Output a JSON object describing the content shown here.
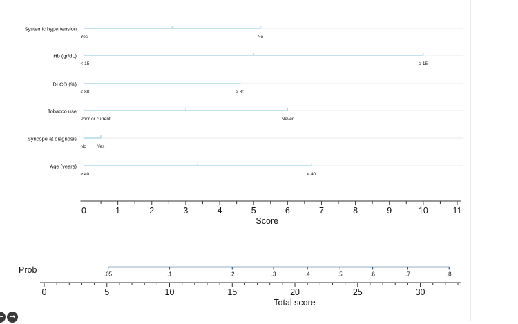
{
  "chart_data": {
    "type": "nomogram",
    "variables": [
      {
        "name": "Systemic hypertension",
        "ticks": [
          {
            "label": "Yes",
            "points": 0
          },
          {
            "label": "No",
            "points": 5.2
          }
        ],
        "max_points": 5.2
      },
      {
        "name": "Hb (gr/dL)",
        "ticks": [
          {
            "label": "< 15",
            "points": 0
          },
          {
            "label": "≥ 15",
            "points": 10
          }
        ],
        "max_points": 10
      },
      {
        "name": "DLCO (%)",
        "ticks": [
          {
            "label": "< 80",
            "points": 0
          },
          {
            "label": "≥ 80",
            "points": 4.6
          }
        ],
        "max_points": 4.6
      },
      {
        "name": "Tobacco use",
        "ticks": [
          {
            "label": "Prior or current",
            "points": 0
          },
          {
            "label": "Never",
            "points": 6
          }
        ],
        "max_points": 6
      },
      {
        "name": "Syncope at diagnosis",
        "ticks": [
          {
            "label": "No",
            "points": 0
          },
          {
            "label": "Yes",
            "points": 0.5
          }
        ],
        "max_points": 0.5
      },
      {
        "name": "Age (years)",
        "ticks": [
          {
            "label": "≥ 40",
            "points": 0
          },
          {
            "label": "< 40",
            "points": 6.7
          }
        ],
        "max_points": 6.7
      }
    ],
    "score_axis": {
      "label": "Score",
      "range": [
        0,
        11
      ],
      "major_ticks": [
        0,
        1,
        2,
        3,
        4,
        5,
        6,
        7,
        8,
        9,
        10,
        11
      ],
      "minor_step": 0.5
    },
    "prob_axis": {
      "label": "Prob",
      "ticks": [
        {
          "label": ".05",
          "total": 5.1
        },
        {
          "label": ".1",
          "total": 10
        },
        {
          "label": ".2",
          "total": 15
        },
        {
          "label": ".3",
          "total": 18.3
        },
        {
          "label": ".4",
          "total": 21
        },
        {
          "label": ".5",
          "total": 23.6
        },
        {
          "label": ".6",
          "total": 26.2
        },
        {
          "label": ".7",
          "total": 29
        },
        {
          "label": ".8",
          "total": 32.3
        }
      ],
      "range": [
        5.1,
        32.3
      ]
    },
    "total_axis": {
      "label": "Total score",
      "range": [
        0,
        33
      ],
      "major_ticks": [
        0,
        5,
        10,
        15,
        20,
        25,
        30
      ],
      "minor_step": 1
    },
    "colors": {
      "variable_line": "#9fd0e6",
      "prob_line": "#2b5d8a",
      "axis": "#333333",
      "grid": "#e8e8e8",
      "text": "#111111"
    }
  },
  "nav": {
    "back_icon": "arrow-left-icon",
    "forward_icon": "arrow-right-icon"
  }
}
